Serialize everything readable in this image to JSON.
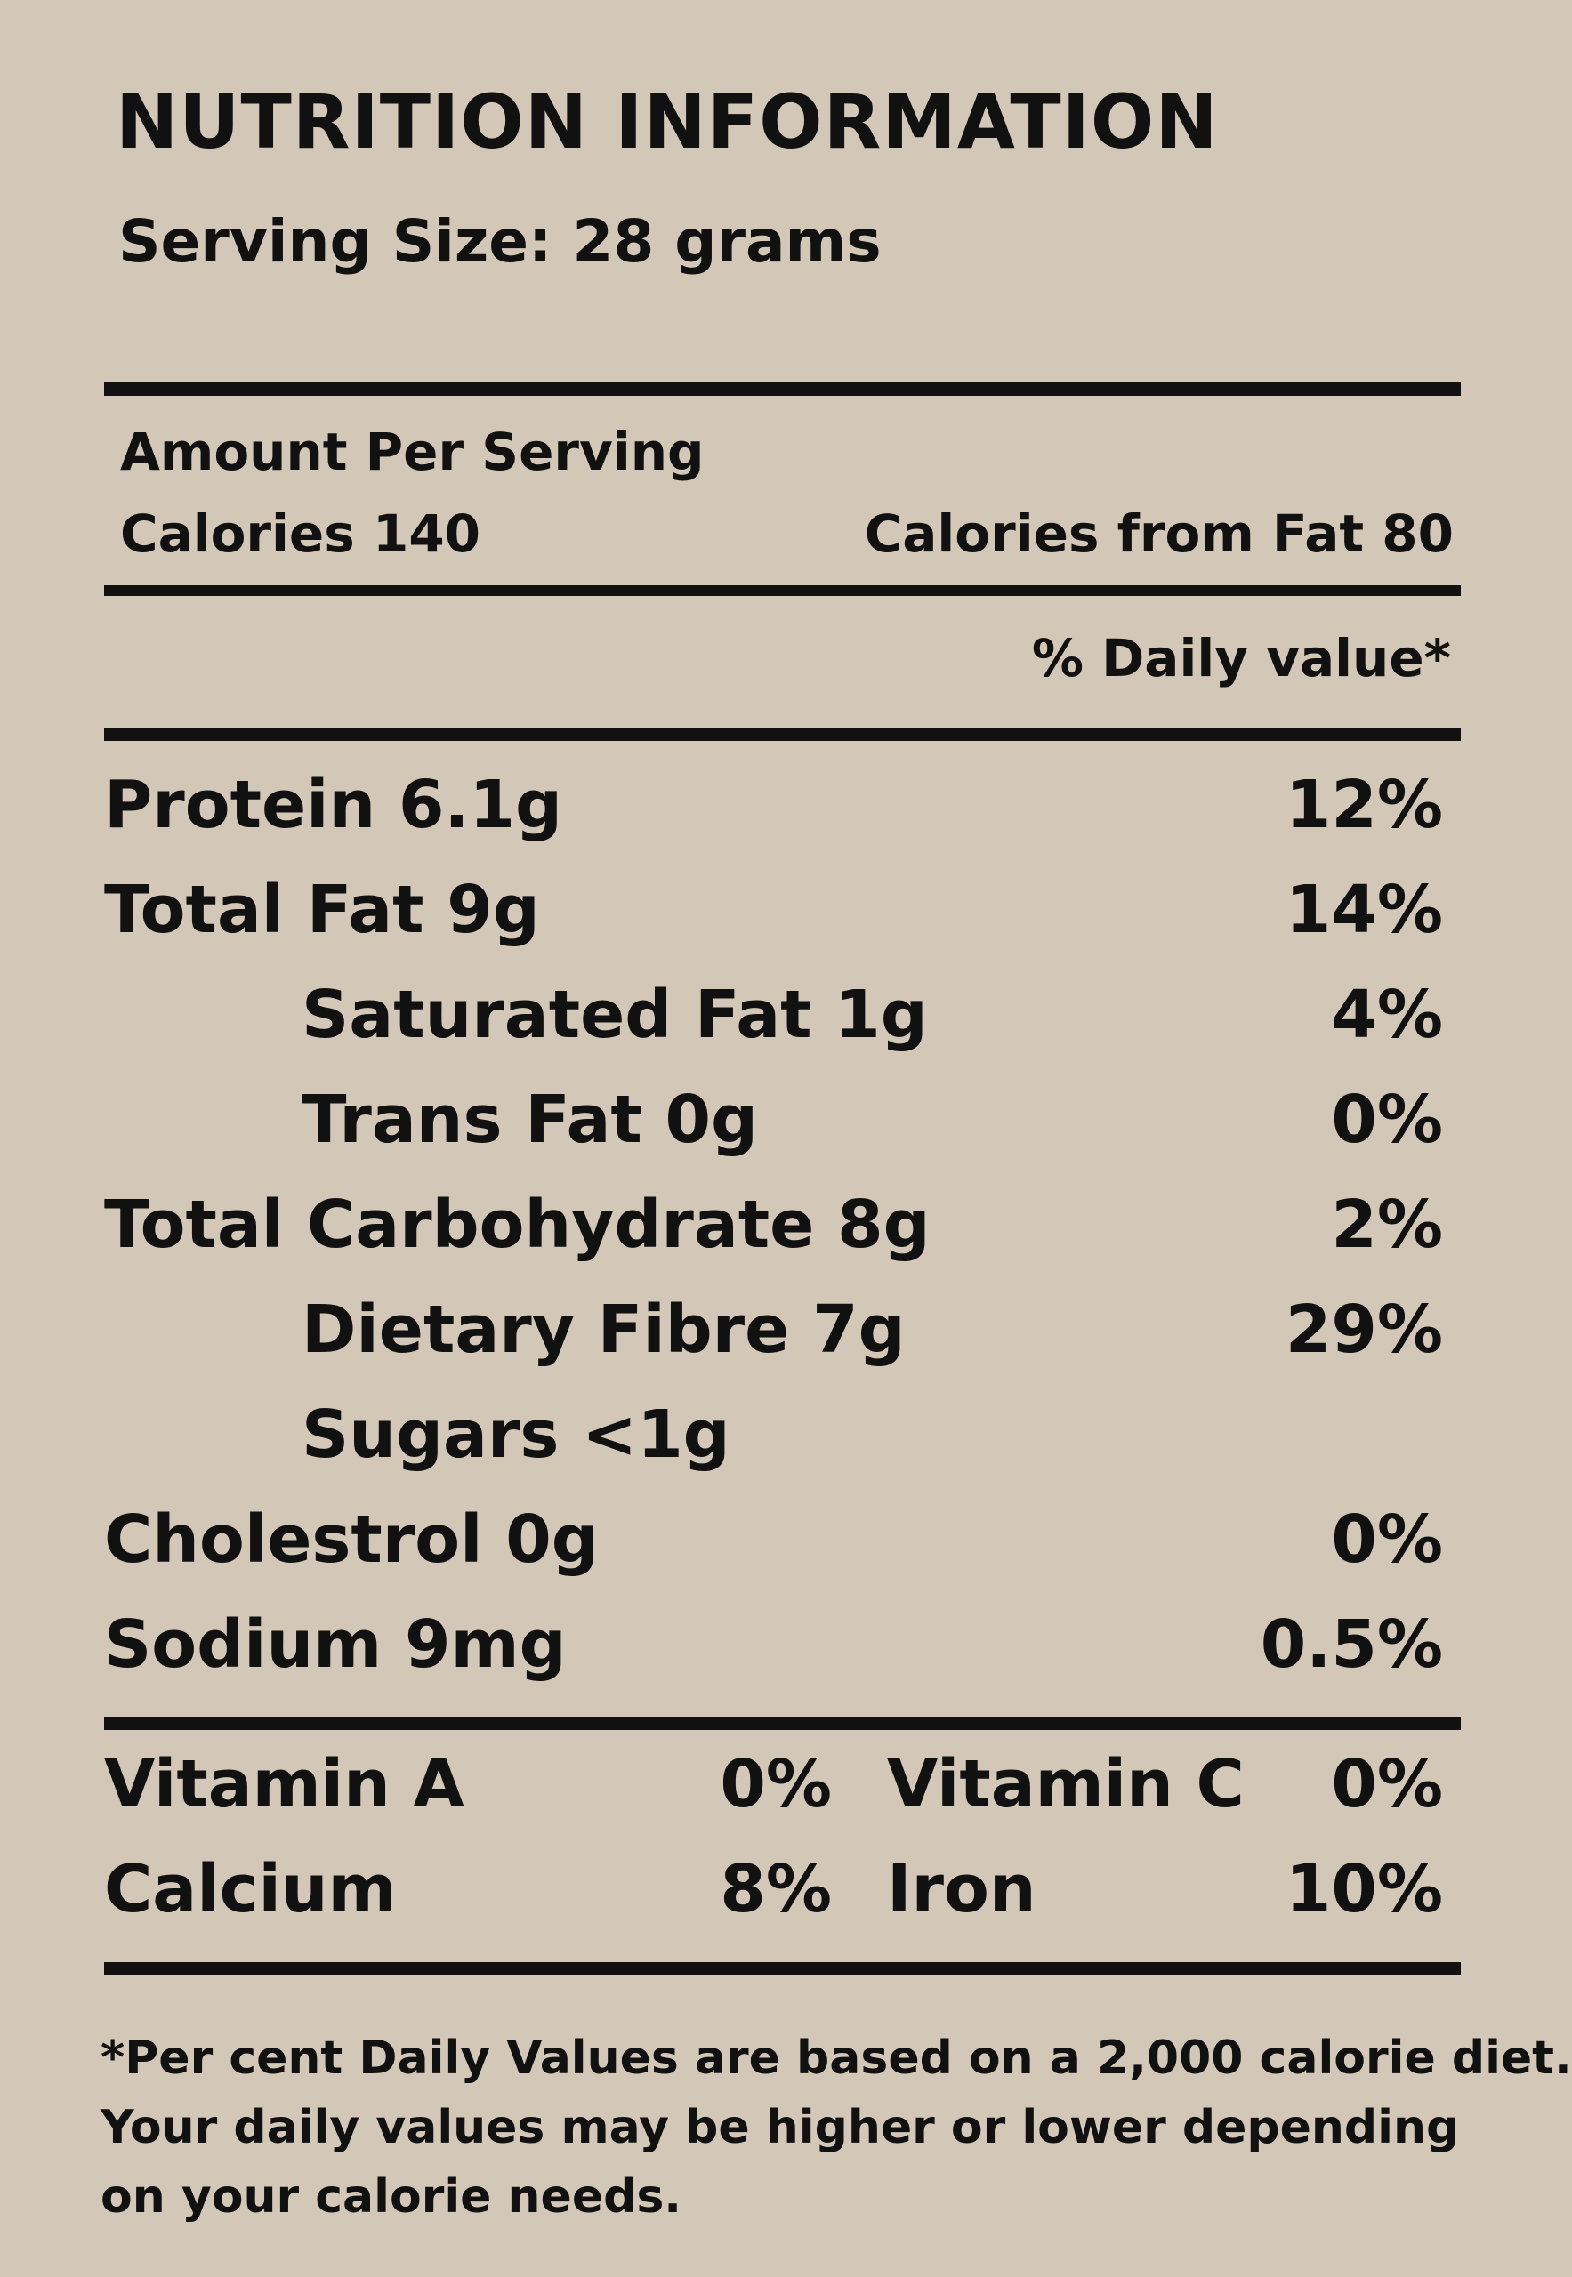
{
  "label": {
    "title": "NUTRITION INFORMATION",
    "serving_size": "Serving Size: 28 grams",
    "amount_per_serving": "Amount Per Serving",
    "calories": "Calories 140",
    "calories_from_fat": "Calories from Fat 80",
    "daily_value_header": "% Daily value*",
    "nutrients": [
      {
        "name": "Protein 6.1g",
        "pct": "12%"
      },
      {
        "name": "Total Fat 9g",
        "pct": "14%"
      },
      {
        "name": "Saturated Fat 1g",
        "pct": "4%"
      },
      {
        "name": "Trans Fat 0g",
        "pct": "0%"
      },
      {
        "name": "Total Carbohydrate 8g",
        "pct": "2%"
      },
      {
        "name": "Dietary Fibre 7g",
        "pct": "29%"
      },
      {
        "name": "Sugars <1g",
        "pct": ""
      },
      {
        "name": "Cholestrol 0g",
        "pct": "0%"
      },
      {
        "name": "Sodium 9mg",
        "pct": "0.5%"
      }
    ],
    "vitamins": [
      {
        "name": "Vitamin A",
        "pct": "0%"
      },
      {
        "name": "Vitamin C",
        "pct": "0%"
      },
      {
        "name": "Calcium",
        "pct": "8%"
      },
      {
        "name": "Iron",
        "pct": "10%"
      }
    ],
    "footnote": [
      "*Per cent Daily Values are based on a 2,000 calorie diet.",
      "Your daily values may be higher or lower depending",
      "on your calorie needs."
    ]
  }
}
